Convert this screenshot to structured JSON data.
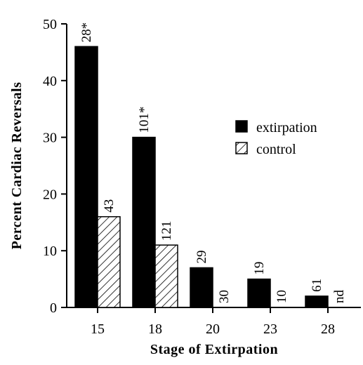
{
  "chart_data": {
    "type": "bar",
    "title": "",
    "xlabel": "Stage of Extirpation",
    "ylabel": "Percent Cardiac Reversals",
    "ylim": [
      0,
      50
    ],
    "yticks": [
      "0",
      "10",
      "20",
      "30",
      "40",
      "50"
    ],
    "categories": [
      "15",
      "18",
      "20",
      "23",
      "28"
    ],
    "series": [
      {
        "name": "extirpation",
        "fill": "solid",
        "color": "#000000",
        "values": [
          46,
          30,
          7,
          5,
          2
        ],
        "labels": [
          "28*",
          "101*",
          "29",
          "19",
          "61"
        ]
      },
      {
        "name": "control",
        "fill": "hatched",
        "color": "#000000",
        "values": [
          16,
          11,
          0,
          0,
          null
        ],
        "labels": [
          "43",
          "121",
          "30",
          "10",
          "nd"
        ]
      }
    ],
    "legend_position": "right",
    "grid": false
  }
}
